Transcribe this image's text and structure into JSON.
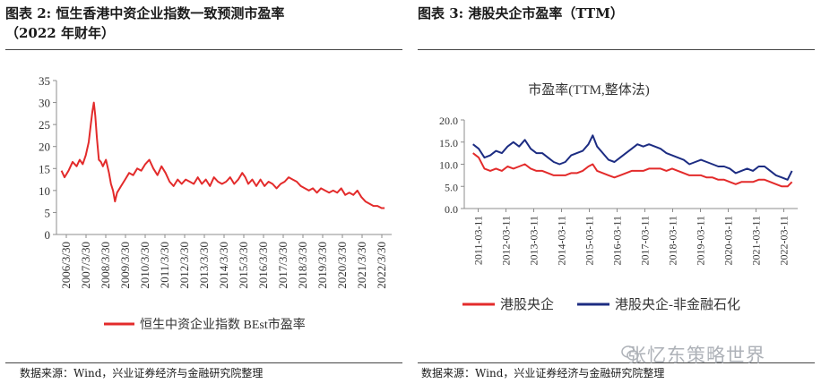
{
  "left": {
    "title_line1": "图表 2:  恒生香港中资企业指数一致预测市盈率",
    "title_line2": "（2022 年财年）",
    "source": "数据来源：Wind，兴业证券经济与金融研究院整理"
  },
  "right": {
    "title_line1": "图表 3:  港股央企市盈率（TTM）",
    "source": "数据来源：Wind，兴业证券经济与金融研究院整理"
  },
  "watermark": "张忆东策略世界",
  "colors": {
    "red": "#e32b2b",
    "navy": "#1c2c82",
    "axis": "#8c8c8c",
    "text": "#333333"
  },
  "chart_data": [
    {
      "type": "line",
      "title": "",
      "xlabel": "",
      "ylabel": "",
      "ylim": [
        0,
        35
      ],
      "y_ticks": [
        "0",
        "5",
        "10",
        "15",
        "20",
        "25",
        "30",
        "35"
      ],
      "x_ticks": [
        "2006/3/30",
        "2007/3/30",
        "2008/3/30",
        "2009/3/30",
        "2010/3/30",
        "2011/3/30",
        "2012/3/30",
        "2013/3/30",
        "2014/3/30",
        "2015/3/30",
        "2016/3/30",
        "2017/3/30",
        "2018/3/30",
        "2019/3/30",
        "2020/3/30",
        "2021/3/30",
        "2022/3/30"
      ],
      "legend": "bottom",
      "series": [
        {
          "name": "恒生中资企业指数 BEst市盈率",
          "color": "#e32b2b",
          "x": [
            2006.25,
            2006.4,
            2006.6,
            2006.8,
            2007.0,
            2007.15,
            2007.3,
            2007.45,
            2007.6,
            2007.7,
            2007.78,
            2007.85,
            2007.92,
            2008.0,
            2008.1,
            2008.2,
            2008.3,
            2008.45,
            2008.6,
            2008.7,
            2008.8,
            2008.9,
            2009.0,
            2009.2,
            2009.4,
            2009.6,
            2009.8,
            2010.0,
            2010.2,
            2010.4,
            2010.6,
            2010.8,
            2011.0,
            2011.2,
            2011.4,
            2011.6,
            2011.8,
            2012.0,
            2012.2,
            2012.4,
            2012.6,
            2012.8,
            2013.0,
            2013.2,
            2013.4,
            2013.6,
            2013.8,
            2014.0,
            2014.2,
            2014.4,
            2014.6,
            2014.8,
            2015.0,
            2015.2,
            2015.35,
            2015.5,
            2015.7,
            2015.9,
            2016.1,
            2016.3,
            2016.5,
            2016.7,
            2016.9,
            2017.1,
            2017.3,
            2017.5,
            2017.7,
            2017.9,
            2018.1,
            2018.3,
            2018.5,
            2018.7,
            2018.9,
            2019.1,
            2019.3,
            2019.5,
            2019.7,
            2019.9,
            2020.1,
            2020.3,
            2020.5,
            2020.7,
            2020.9,
            2021.1,
            2021.3,
            2021.5,
            2021.7,
            2021.9,
            2022.1,
            2022.25
          ],
          "values": [
            14.5,
            13.0,
            14.5,
            16.5,
            15.5,
            17.0,
            16.0,
            18.0,
            21.0,
            25.0,
            28.0,
            30.0,
            27.0,
            22.0,
            17.0,
            16.5,
            15.5,
            17.0,
            14.0,
            11.5,
            10.0,
            7.5,
            9.5,
            11.0,
            12.5,
            14.0,
            13.5,
            15.0,
            14.5,
            16.0,
            17.0,
            15.0,
            13.5,
            15.5,
            14.0,
            12.0,
            11.0,
            12.5,
            11.5,
            12.5,
            12.0,
            11.5,
            13.0,
            11.5,
            12.5,
            11.0,
            13.0,
            12.0,
            11.5,
            12.0,
            13.0,
            11.5,
            12.5,
            14.0,
            13.0,
            11.5,
            12.5,
            11.0,
            12.5,
            11.0,
            12.0,
            11.5,
            10.5,
            11.5,
            12.0,
            13.0,
            12.5,
            12.0,
            11.0,
            10.5,
            10.0,
            10.5,
            9.5,
            10.5,
            10.0,
            9.5,
            10.0,
            9.5,
            10.5,
            9.0,
            9.5,
            9.0,
            10.0,
            8.5,
            7.5,
            7.0,
            6.5,
            6.5,
            6.0,
            6.0
          ]
        }
      ]
    },
    {
      "type": "line",
      "title": "市盈率(TTM,整体法)",
      "xlabel": "",
      "ylabel": "",
      "ylim": [
        0,
        20
      ],
      "y_ticks": [
        "0.0",
        "5.0",
        "10.0",
        "15.0",
        "20.0"
      ],
      "x_ticks": [
        "2011-03-11",
        "2012-03-11",
        "2013-03-11",
        "2014-03-11",
        "2015-03-11",
        "2016-03-11",
        "2017-03-11",
        "2018-03-11",
        "2019-03-11",
        "2020-03-11",
        "2021-03-11",
        "2022-03-11"
      ],
      "legend": "bottom",
      "series": [
        {
          "name": "港股央企",
          "color": "#e32b2b",
          "x": [
            2011.2,
            2011.4,
            2011.6,
            2011.8,
            2012.0,
            2012.2,
            2012.4,
            2012.6,
            2012.8,
            2013.0,
            2013.2,
            2013.4,
            2013.6,
            2013.8,
            2014.0,
            2014.2,
            2014.4,
            2014.6,
            2014.8,
            2015.0,
            2015.2,
            2015.35,
            2015.5,
            2015.7,
            2015.9,
            2016.1,
            2016.3,
            2016.5,
            2016.7,
            2016.9,
            2017.1,
            2017.3,
            2017.5,
            2017.7,
            2017.9,
            2018.1,
            2018.3,
            2018.5,
            2018.7,
            2018.9,
            2019.1,
            2019.3,
            2019.5,
            2019.7,
            2019.9,
            2020.1,
            2020.3,
            2020.5,
            2020.7,
            2020.9,
            2021.1,
            2021.3,
            2021.5,
            2021.7,
            2021.9,
            2022.1,
            2022.25
          ],
          "values": [
            12.5,
            11.5,
            9.0,
            8.5,
            9.0,
            8.5,
            9.5,
            9.0,
            9.5,
            10.0,
            9.0,
            8.5,
            8.5,
            8.0,
            7.5,
            7.5,
            7.5,
            8.0,
            8.0,
            8.5,
            9.5,
            10.0,
            8.5,
            8.0,
            7.5,
            7.0,
            7.5,
            8.0,
            8.5,
            8.5,
            8.5,
            9.0,
            9.0,
            9.0,
            8.5,
            9.0,
            8.5,
            8.0,
            7.5,
            7.5,
            7.5,
            7.0,
            7.0,
            6.5,
            6.5,
            6.0,
            5.5,
            6.0,
            6.0,
            6.0,
            6.5,
            6.5,
            6.0,
            5.5,
            5.0,
            5.0,
            6.0
          ]
        },
        {
          "name": "港股央企-非金融石化",
          "color": "#1c2c82",
          "x": [
            2011.2,
            2011.4,
            2011.6,
            2011.8,
            2012.0,
            2012.2,
            2012.4,
            2012.6,
            2012.8,
            2013.0,
            2013.2,
            2013.4,
            2013.6,
            2013.8,
            2014.0,
            2014.2,
            2014.4,
            2014.6,
            2014.8,
            2015.0,
            2015.2,
            2015.35,
            2015.5,
            2015.7,
            2015.9,
            2016.1,
            2016.3,
            2016.5,
            2016.7,
            2016.9,
            2017.1,
            2017.3,
            2017.5,
            2017.7,
            2017.9,
            2018.1,
            2018.3,
            2018.5,
            2018.7,
            2018.9,
            2019.1,
            2019.3,
            2019.5,
            2019.7,
            2019.9,
            2020.1,
            2020.3,
            2020.5,
            2020.7,
            2020.9,
            2021.1,
            2021.3,
            2021.5,
            2021.7,
            2021.9,
            2022.1,
            2022.25
          ],
          "values": [
            14.5,
            13.5,
            11.5,
            12.0,
            13.0,
            12.5,
            14.0,
            15.0,
            14.0,
            15.5,
            13.5,
            12.5,
            12.5,
            11.5,
            10.5,
            10.0,
            10.5,
            12.0,
            12.5,
            13.0,
            14.5,
            16.5,
            14.0,
            12.5,
            11.0,
            10.5,
            11.5,
            12.5,
            13.5,
            14.5,
            14.0,
            14.5,
            14.0,
            13.5,
            12.5,
            12.0,
            11.5,
            11.0,
            10.0,
            10.5,
            11.0,
            10.5,
            10.0,
            9.5,
            9.5,
            9.0,
            8.0,
            8.5,
            9.0,
            8.5,
            9.5,
            9.5,
            8.5,
            7.5,
            7.0,
            6.5,
            8.5
          ]
        }
      ]
    }
  ]
}
